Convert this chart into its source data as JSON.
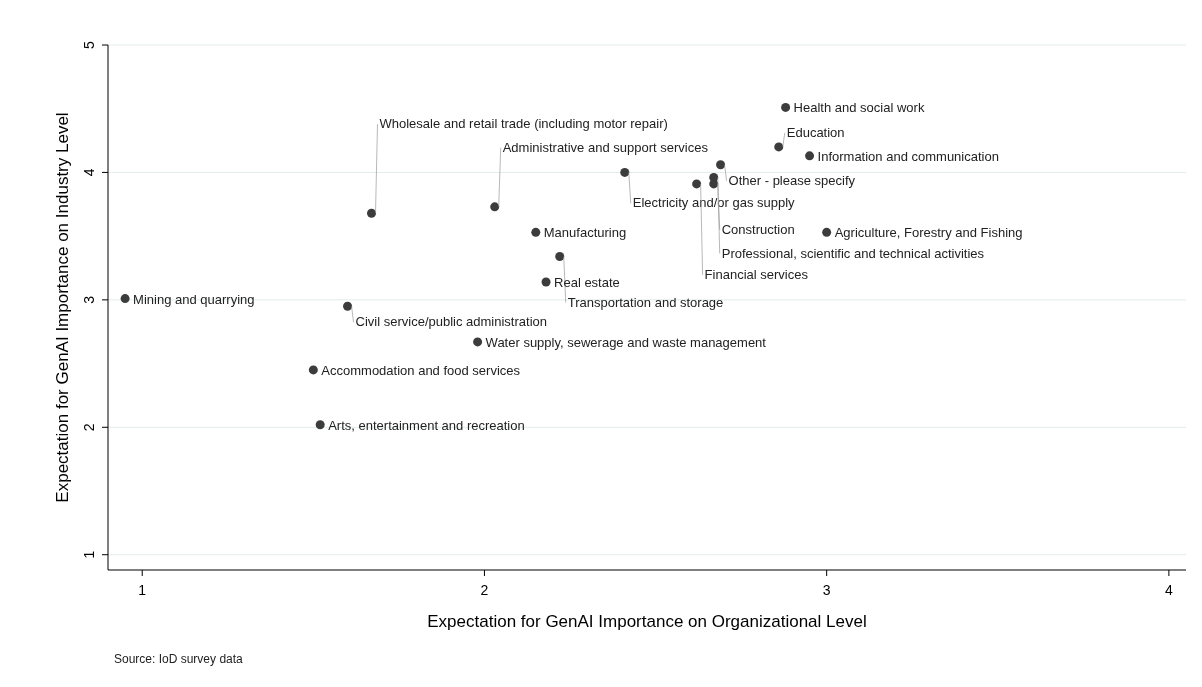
{
  "chart_data": {
    "type": "scatter",
    "xlabel": "Expectation for GenAI Importance on Organizational Level",
    "ylabel": "Expectation for GenAI Importance on Industry Level",
    "x": [
      2.88,
      2.86,
      2.95,
      2.69,
      2.41,
      2.67,
      2.62,
      2.67,
      2.03,
      1.67,
      3.0,
      2.15,
      2.22,
      2.18,
      0.95,
      1.6,
      1.98,
      1.5,
      1.52
    ],
    "series": [
      {
        "color": "#3c3c3c",
        "values": [
          4.51,
          4.2,
          4.13,
          4.06,
          4.0,
          3.96,
          3.91,
          3.91,
          3.73,
          3.68,
          3.53,
          3.53,
          3.34,
          3.14,
          3.01,
          2.95,
          2.67,
          2.45,
          2.02
        ]
      }
    ],
    "xlim": [
      0.9,
      4.05
    ],
    "ylim": [
      0.88,
      5
    ],
    "xticks": [
      1,
      2,
      3,
      4
    ],
    "yticks": [
      1,
      2,
      3,
      4,
      5
    ],
    "grid": "y",
    "marker": "circle",
    "annotations": [
      {
        "text": "Health and social work",
        "x": 2.88,
        "y": 4.51
      },
      {
        "text": "Education",
        "x": 2.86,
        "y": 4.2
      },
      {
        "text": "Information and communication",
        "x": 2.95,
        "y": 4.13
      },
      {
        "text": "Other - please specify",
        "x": 2.69,
        "y": 4.06
      },
      {
        "text": "Electricity and/or gas supply",
        "x": 2.41,
        "y": 4.0
      },
      {
        "text": "Professional, scientific and technical activities",
        "x": 2.67,
        "y": 3.96
      },
      {
        "text": "Financial services",
        "x": 2.62,
        "y": 3.91
      },
      {
        "text": "Construction",
        "x": 2.67,
        "y": 3.91
      },
      {
        "text": "Administrative and support services",
        "x": 2.03,
        "y": 3.73
      },
      {
        "text": "Wholesale and retail trade (including motor repair)",
        "x": 1.67,
        "y": 3.68
      },
      {
        "text": "Agriculture, Forestry and Fishing",
        "x": 3.0,
        "y": 3.53
      },
      {
        "text": "Manufacturing",
        "x": 2.15,
        "y": 3.53
      },
      {
        "text": "Transportation and storage",
        "x": 2.22,
        "y": 3.34
      },
      {
        "text": "Real estate",
        "x": 2.18,
        "y": 3.14
      },
      {
        "text": "Mining and quarrying",
        "x": 0.95,
        "y": 3.01
      },
      {
        "text": "Civil service/public administration",
        "x": 1.6,
        "y": 2.95
      },
      {
        "text": "Water supply, sewerage and waste management",
        "x": 1.98,
        "y": 2.67
      },
      {
        "text": "Accommodation and food services",
        "x": 1.5,
        "y": 2.45
      },
      {
        "text": "Arts, entertainment and recreation",
        "x": 1.52,
        "y": 2.02
      },
      "Source: IoD survey data"
    ]
  }
}
